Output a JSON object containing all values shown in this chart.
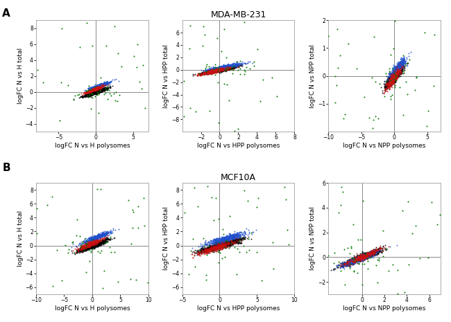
{
  "title_A": "MDA-MB-231",
  "title_B": "MCF10A",
  "label_A": "A",
  "label_B": "B",
  "panels": [
    {
      "row": 0,
      "col": 0,
      "xlabel": "logFC N vs H polysomes",
      "ylabel": "logFC N vs H total",
      "xlim": [
        -8,
        7
      ],
      "ylim": [
        -5,
        9
      ],
      "xticks": [
        -5,
        0,
        5
      ],
      "yticks": [
        -4,
        -2,
        0,
        2,
        4,
        6,
        8
      ],
      "corr": 0.92,
      "x_std": 0.7,
      "y_noise": 0.25,
      "blue_shift_x": 0.5,
      "blue_shift_y": 0.8,
      "red_shift_x": -0.3,
      "red_shift_y": 0.3,
      "seed": 101
    },
    {
      "row": 0,
      "col": 1,
      "xlabel": "logFC N vs HPP polysomes",
      "ylabel": "logFC N vs HPP total",
      "xlim": [
        -4,
        8
      ],
      "ylim": [
        -10,
        8
      ],
      "xticks": [
        -2,
        0,
        2,
        4,
        6,
        8
      ],
      "yticks": [
        -8,
        -6,
        -4,
        -2,
        0,
        2,
        4,
        6
      ],
      "corr": 0.88,
      "x_std": 0.9,
      "y_noise": 0.3,
      "blue_shift_x": 0.6,
      "blue_shift_y": 0.5,
      "red_shift_x": -0.5,
      "red_shift_y": -0.2,
      "seed": 102
    },
    {
      "row": 0,
      "col": 2,
      "xlabel": "logFC N vs NPP polysomes",
      "ylabel": "logFC N vs NPP total",
      "xlim": [
        -10,
        7
      ],
      "ylim": [
        -2,
        2
      ],
      "xticks": [
        -10,
        -5,
        0,
        5
      ],
      "yticks": [
        -1,
        0,
        1,
        2
      ],
      "corr": 0.85,
      "x_std": 0.6,
      "y_noise": 0.18,
      "blue_shift_x": 0.4,
      "blue_shift_y": 0.25,
      "red_shift_x": -0.2,
      "red_shift_y": -0.1,
      "seed": 103
    },
    {
      "row": 1,
      "col": 0,
      "xlabel": "logFC N vs H polysomes",
      "ylabel": "logFC N vs H total",
      "xlim": [
        -10,
        10
      ],
      "ylim": [
        -7,
        9
      ],
      "xticks": [
        -10,
        -5,
        0,
        5,
        10
      ],
      "yticks": [
        -6,
        -4,
        -2,
        0,
        2,
        4,
        6,
        8
      ],
      "corr": 0.9,
      "x_std": 1.2,
      "y_noise": 0.4,
      "blue_shift_x": 0.8,
      "blue_shift_y": 1.2,
      "red_shift_x": -0.4,
      "red_shift_y": 0.2,
      "seed": 104
    },
    {
      "row": 1,
      "col": 1,
      "xlabel": "logFC N vs HPP polysomes",
      "ylabel": "logFC N vs HPP total",
      "xlim": [
        -5,
        10
      ],
      "ylim": [
        -7,
        9
      ],
      "xticks": [
        -5,
        0,
        5,
        10
      ],
      "yticks": [
        -6,
        -4,
        -2,
        0,
        2,
        4,
        6,
        8
      ],
      "corr": 0.88,
      "x_std": 1.3,
      "y_noise": 0.45,
      "blue_shift_x": 0.7,
      "blue_shift_y": 1.0,
      "red_shift_x": -0.5,
      "red_shift_y": -0.3,
      "seed": 105
    },
    {
      "row": 1,
      "col": 2,
      "xlabel": "logFC N vs NPP polysomes",
      "ylabel": "logFC N vs NPP total",
      "xlim": [
        -3,
        7
      ],
      "ylim": [
        -3,
        6
      ],
      "xticks": [
        0,
        2,
        4,
        6
      ],
      "yticks": [
        -2,
        0,
        2,
        4,
        6
      ],
      "corr": 0.92,
      "x_std": 0.8,
      "y_noise": 0.3,
      "blue_shift_x": -0.2,
      "blue_shift_y": -0.1,
      "red_shift_x": 0.1,
      "red_shift_y": 0.05,
      "seed": 106
    }
  ],
  "n_black": 1200,
  "n_blue": 500,
  "n_red": 350,
  "n_green": 60,
  "colors": {
    "black": "#000000",
    "blue": "#1F4FCC",
    "red": "#CC1111",
    "green": "#007700"
  },
  "axis_line_color": "#888888",
  "spine_color": "#aaaaaa",
  "background": "#FFFFFF"
}
